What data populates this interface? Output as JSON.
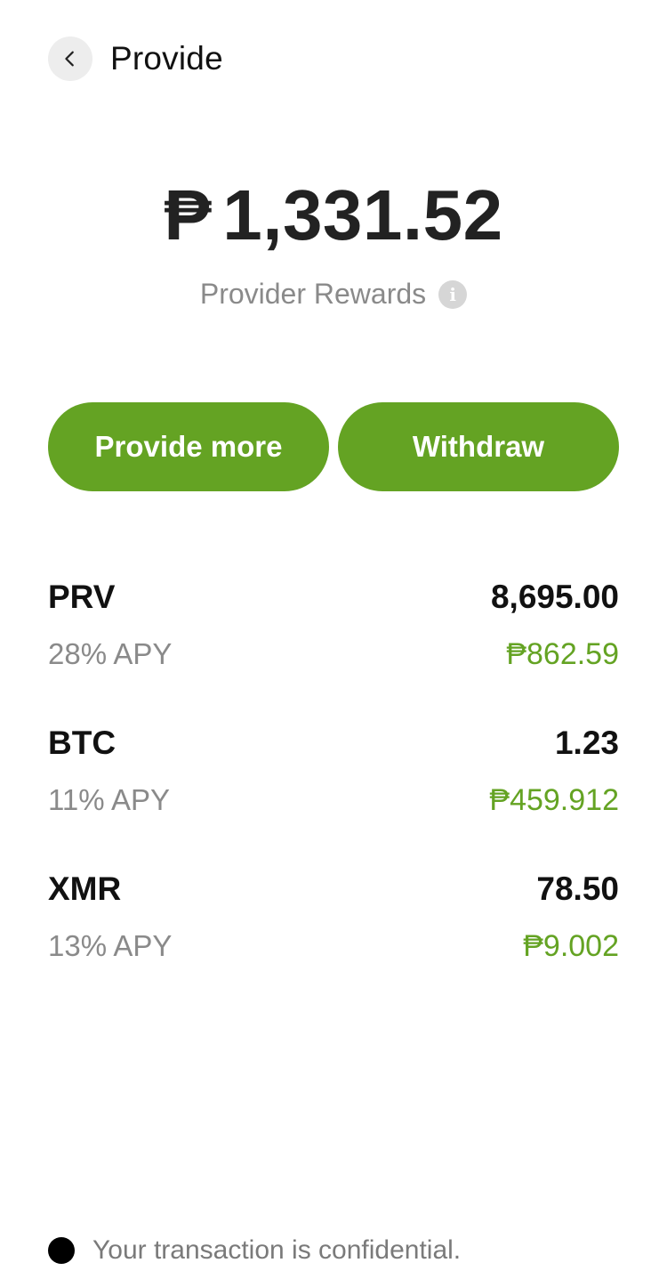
{
  "header": {
    "title": "Provide",
    "back_icon": "chevron-left-icon"
  },
  "balance": {
    "currency_symbol": "₱",
    "amount": "1,331.52",
    "label": "Provider Rewards",
    "info_icon": "info-icon"
  },
  "actions": {
    "provide_more_label": "Provide more",
    "withdraw_label": "Withdraw"
  },
  "assets": [
    {
      "symbol": "PRV",
      "amount": "8,695.00",
      "apy": "28% APY",
      "value": "₱862.59"
    },
    {
      "symbol": "BTC",
      "amount": "1.23",
      "apy": "11% APY",
      "value": "₱459.912"
    },
    {
      "symbol": "XMR",
      "amount": "78.50",
      "apy": "13% APY",
      "value": "₱9.002"
    }
  ],
  "footer": {
    "text": "Your transaction is confidential.",
    "status_icon": "dot-icon"
  },
  "colors": {
    "accent": "#64a323",
    "text_primary": "#111111",
    "text_secondary": "#8a8a8a"
  }
}
